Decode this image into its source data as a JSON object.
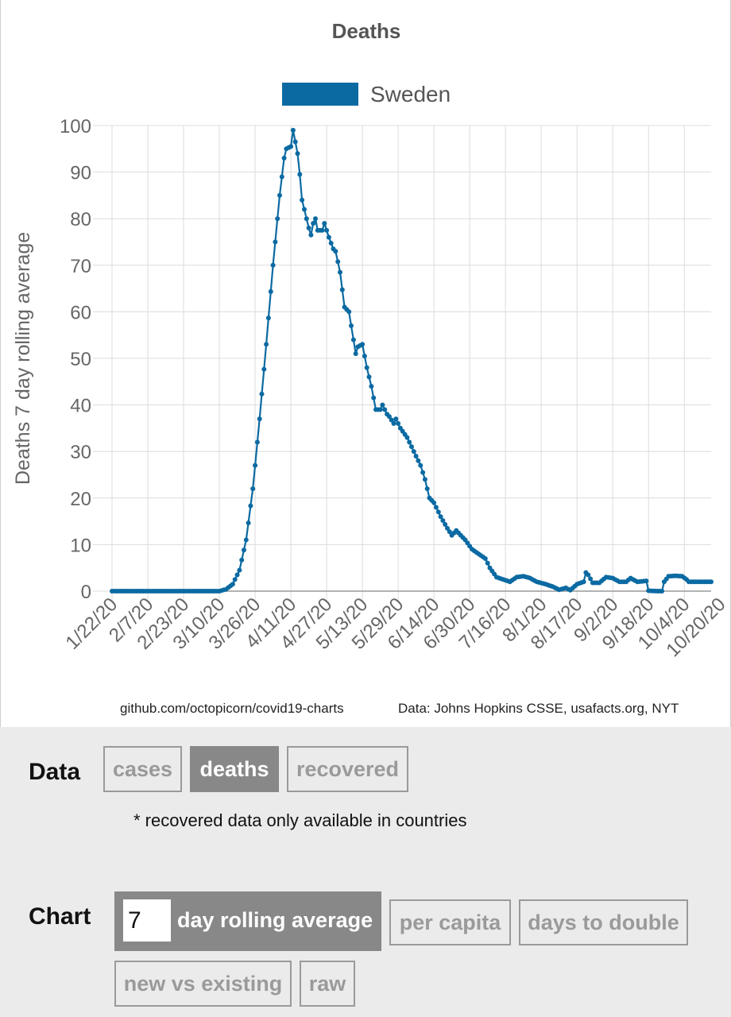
{
  "credits": {
    "source": "github.com/octopicorn/covid19-charts",
    "data": "Data: Johns Hopkins CSSE, usafacts.org, NYT"
  },
  "controls": {
    "data_label": "Data",
    "data_options": [
      "cases",
      "deaths",
      "recovered"
    ],
    "data_selected": "deaths",
    "note": "* recovered data only available in countries",
    "chart_label": "Chart",
    "rolling_days": "7",
    "rolling_label": "day rolling average",
    "chart_options_row1": [
      "per capita",
      "days to double"
    ],
    "chart_options_row2": [
      "new vs existing",
      "raw"
    ]
  },
  "colors": {
    "series": "#0b6aa2",
    "grid": "#dcdcdc",
    "panel_bg": "#ebebeb",
    "active_button": "#888888"
  },
  "chart_data": {
    "type": "line",
    "title": "Deaths",
    "xlabel": "",
    "ylabel": "Deaths 7 day rolling average",
    "ylim": [
      0,
      100
    ],
    "yticks": [
      0,
      10,
      20,
      30,
      40,
      50,
      60,
      70,
      80,
      90,
      100
    ],
    "xtick_labels": [
      "1/22/20",
      "2/7/20",
      "2/23/20",
      "3/10/20",
      "3/26/20",
      "4/11/20",
      "4/27/20",
      "5/13/20",
      "5/29/20",
      "6/14/20",
      "6/30/20",
      "7/16/20",
      "8/1/20",
      "8/17/20",
      "9/2/20",
      "9/18/20",
      "10/4/20",
      "10/20/20"
    ],
    "grid": true,
    "legend_position": "top-center",
    "series": [
      {
        "name": "Sweden",
        "x_start": "1/22/20",
        "x_end": "10/16/20",
        "keyframes": [
          [
            "1/22/20",
            0
          ],
          [
            "3/10/20",
            0
          ],
          [
            "3/13/20",
            0.4
          ],
          [
            "3/16/20",
            1.5
          ],
          [
            "3/19/20",
            4.5
          ],
          [
            "3/22/20",
            11
          ],
          [
            "3/25/20",
            22
          ],
          [
            "3/28/20",
            37
          ],
          [
            "3/31/20",
            53
          ],
          [
            "4/3/20",
            70
          ],
          [
            "4/5/20",
            80
          ],
          [
            "4/6/20",
            85
          ],
          [
            "4/8/20",
            93
          ],
          [
            "4/9/20",
            95
          ],
          [
            "4/11/20",
            95.5
          ],
          [
            "4/12/20",
            99
          ],
          [
            "4/13/20",
            96.5
          ],
          [
            "4/14/20",
            94
          ],
          [
            "4/15/20",
            89.5
          ],
          [
            "4/16/20",
            84
          ],
          [
            "4/18/20",
            80
          ],
          [
            "4/19/20",
            78
          ],
          [
            "4/20/20",
            76.5
          ],
          [
            "4/21/20",
            79
          ],
          [
            "4/22/20",
            80
          ],
          [
            "4/23/20",
            77.5
          ],
          [
            "4/25/20",
            77.5
          ],
          [
            "4/26/20",
            79
          ],
          [
            "4/28/20",
            76
          ],
          [
            "4/30/20",
            73.5
          ],
          [
            "5/1/20",
            73
          ],
          [
            "5/3/20",
            68.5
          ],
          [
            "5/5/20",
            61
          ],
          [
            "5/7/20",
            60
          ],
          [
            "5/9/20",
            54
          ],
          [
            "5/10/20",
            51
          ],
          [
            "5/11/20",
            52.5
          ],
          [
            "5/13/20",
            53
          ],
          [
            "5/15/20",
            48
          ],
          [
            "5/17/20",
            44
          ],
          [
            "5/19/20",
            39
          ],
          [
            "5/21/20",
            39
          ],
          [
            "5/22/20",
            40
          ],
          [
            "5/24/20",
            38
          ],
          [
            "5/25/20",
            37.5
          ],
          [
            "5/27/20",
            36
          ],
          [
            "5/28/20",
            37
          ],
          [
            "5/30/20",
            35
          ],
          [
            "6/2/20",
            33
          ],
          [
            "6/5/20",
            30
          ],
          [
            "6/8/20",
            27
          ],
          [
            "6/10/20",
            24
          ],
          [
            "6/12/20",
            20
          ],
          [
            "6/14/20",
            19
          ],
          [
            "6/17/20",
            16
          ],
          [
            "6/20/20",
            13.5
          ],
          [
            "6/22/20",
            12
          ],
          [
            "6/24/20",
            13
          ],
          [
            "6/28/20",
            11
          ],
          [
            "7/1/20",
            9
          ],
          [
            "7/4/20",
            8
          ],
          [
            "7/7/20",
            7
          ],
          [
            "7/9/20",
            5
          ],
          [
            "7/12/20",
            3
          ],
          [
            "7/15/20",
            2.5
          ],
          [
            "7/18/20",
            2
          ],
          [
            "7/21/20",
            3
          ],
          [
            "7/24/20",
            3.2
          ],
          [
            "7/27/20",
            2.8
          ],
          [
            "7/30/20",
            2
          ],
          [
            "8/3/20",
            1.5
          ],
          [
            "8/6/20",
            1
          ],
          [
            "8/9/20",
            0.3
          ],
          [
            "8/12/20",
            0.7
          ],
          [
            "8/14/20",
            0.2
          ],
          [
            "8/17/20",
            1.5
          ],
          [
            "8/20/20",
            2
          ],
          [
            "8/21/20",
            4
          ],
          [
            "8/22/20",
            3.5
          ],
          [
            "8/24/20",
            1.8
          ],
          [
            "8/27/20",
            1.8
          ],
          [
            "8/30/20",
            3
          ],
          [
            "9/2/20",
            2.8
          ],
          [
            "9/5/20",
            2
          ],
          [
            "9/8/20",
            2
          ],
          [
            "9/10/20",
            2.8
          ],
          [
            "9/13/20",
            2
          ],
          [
            "9/17/20",
            2.2
          ],
          [
            "9/18/20",
            0.1
          ],
          [
            "9/22/20",
            0
          ],
          [
            "9/24/20",
            0
          ],
          [
            "9/25/20",
            2
          ],
          [
            "9/27/20",
            3.2
          ],
          [
            "9/30/20",
            3.3
          ],
          [
            "10/3/20",
            3.2
          ],
          [
            "10/5/20",
            2.5
          ],
          [
            "10/6/20",
            2
          ]
        ]
      }
    ]
  }
}
